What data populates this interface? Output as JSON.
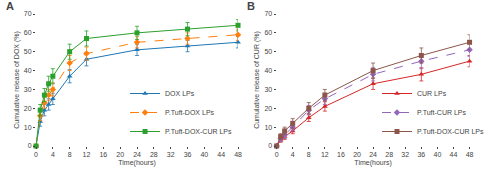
{
  "chart_data": [
    {
      "type": "line",
      "title": "A",
      "x_label": "Time(hours)",
      "y_label": "Cumulative release of DOX (%)",
      "x": [
        0,
        1,
        2,
        3,
        4,
        8,
        12,
        24,
        36,
        48
      ],
      "series": [
        {
          "name": "DOX LPs",
          "values": [
            0,
            13,
            19,
            22,
            25,
            37,
            46,
            51,
            53,
            55
          ],
          "yerr": [
            0,
            2.5,
            3,
            3,
            3,
            3.5,
            3.5,
            3,
            3,
            3
          ],
          "marker": "triangle",
          "line_style": "solid"
        },
        {
          "name": "P.Tuft-DOX LPs",
          "values": [
            0,
            16,
            23,
            27,
            30,
            44,
            49,
            55,
            57,
            59
          ],
          "yerr": [
            0,
            2.5,
            3,
            3,
            3.5,
            4,
            3.5,
            3,
            3,
            3
          ],
          "marker": "diamond",
          "line_style": "dashed"
        },
        {
          "name": "P.Tuft-DOX-CUR LPs",
          "values": [
            0,
            19,
            27,
            33,
            37,
            50,
            57,
            60,
            62,
            64
          ],
          "yerr": [
            0,
            3,
            3.5,
            4,
            4,
            4,
            4,
            3.5,
            3.5,
            3
          ],
          "marker": "square",
          "line_style": "solid"
        }
      ],
      "xlim": [
        0,
        48
      ],
      "xticks": [
        0,
        4,
        8,
        12,
        16,
        20,
        24,
        28,
        32,
        36,
        40,
        44,
        48
      ],
      "ylim": [
        0,
        70
      ],
      "yticks": [
        0,
        10,
        20,
        30,
        40,
        50,
        60,
        70
      ],
      "grid": false,
      "legend": "lower right"
    },
    {
      "type": "line",
      "title": "B",
      "x_label": "Time(hours)",
      "y_label": "Cumulative release of CUR (%)",
      "x": [
        0,
        1,
        2,
        4,
        8,
        12,
        24,
        36,
        48
      ],
      "series": [
        {
          "name": "CUR LPs",
          "values": [
            0,
            3,
            5,
            8,
            15,
            21,
            33,
            38,
            45
          ],
          "yerr": [
            0,
            1,
            1.5,
            1.5,
            2,
            2.5,
            3,
            3.5,
            3
          ],
          "marker": "triangle",
          "line_style": "solid"
        },
        {
          "name": "P.Tuft-CUR LPs",
          "values": [
            0,
            4,
            6,
            10,
            19,
            25,
            38,
            45,
            51
          ],
          "yerr": [
            0,
            1.5,
            2,
            2,
            2.5,
            3,
            3.5,
            4,
            3.5
          ],
          "marker": "diamond",
          "line_style": "dashed"
        },
        {
          "name": "P.Tuft-DOX-CUR LPs",
          "values": [
            0,
            5,
            8,
            12,
            20,
            27,
            40,
            48,
            55
          ],
          "yerr": [
            0,
            1.5,
            2,
            2.5,
            3,
            3,
            4,
            4,
            4
          ],
          "marker": "square",
          "line_style": "solid"
        }
      ],
      "xlim": [
        0,
        48
      ],
      "xticks": [
        0,
        4,
        8,
        12,
        16,
        20,
        24,
        28,
        32,
        36,
        40,
        44,
        48
      ],
      "ylim": [
        0,
        70
      ],
      "yticks": [
        0,
        10,
        20,
        30,
        40,
        50,
        60,
        70
      ],
      "grid": false,
      "legend": "lower right"
    }
  ]
}
